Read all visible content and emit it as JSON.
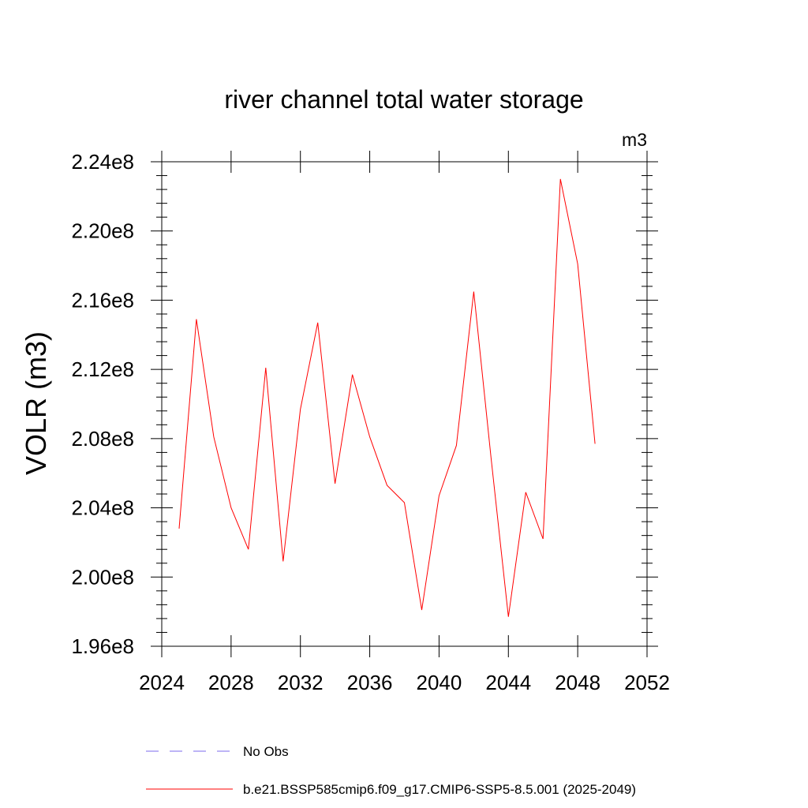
{
  "chart_data": {
    "type": "line",
    "title": "river channel total water storage",
    "units_label": "m3",
    "ylabel": "VOLR  (m3)",
    "xlabel": "",
    "xlim": [
      2024,
      2052
    ],
    "ylim": [
      196000000.0,
      224000000.0
    ],
    "x_ticks": [
      2024,
      2028,
      2032,
      2036,
      2040,
      2044,
      2048,
      2052
    ],
    "x_tick_labels": [
      "2024",
      "2028",
      "2032",
      "2036",
      "2040",
      "2044",
      "2048",
      "2052"
    ],
    "y_ticks": [
      196000000.0,
      200000000.0,
      204000000.0,
      208000000.0,
      212000000.0,
      216000000.0,
      220000000.0,
      224000000.0
    ],
    "y_tick_labels": [
      "1.96e8",
      "2.00e8",
      "2.04e8",
      "2.08e8",
      "2.12e8",
      "2.16e8",
      "2.20e8",
      "2.24e8"
    ],
    "grid": false,
    "legend_position": "bottom",
    "series": [
      {
        "name": "b.e21.BSSP585cmip6.f09_g17.CMIP6-SSP5-8.5.001 (2025-2049)",
        "color": "#ff0000",
        "style": "solid",
        "x": [
          2025,
          2026,
          2027,
          2028,
          2029,
          2030,
          2031,
          2032,
          2033,
          2034,
          2035,
          2036,
          2037,
          2038,
          2039,
          2040,
          2041,
          2042,
          2043,
          2044,
          2045,
          2046,
          2047,
          2048,
          2049
        ],
        "values": [
          202800000.0,
          214900000.0,
          208100000.0,
          204000000.0,
          201600000.0,
          212100000.0,
          200900000.0,
          209700000.0,
          214700000.0,
          205400000.0,
          211700000.0,
          208100000.0,
          205300000.0,
          204300000.0,
          198100000.0,
          204700000.0,
          207600000.0,
          216500000.0,
          206900000.0,
          197700000.0,
          204900000.0,
          202200000.0,
          223000000.0,
          218100000.0,
          207700000.0
        ]
      }
    ],
    "legend": [
      {
        "label": "No Obs",
        "color": "#7b68ee",
        "style": "dashed"
      },
      {
        "label": "b.e21.BSSP585cmip6.f09_g17.CMIP6-SSP5-8.5.001 (2025-2049)",
        "color": "#ff0000",
        "style": "solid"
      }
    ]
  }
}
